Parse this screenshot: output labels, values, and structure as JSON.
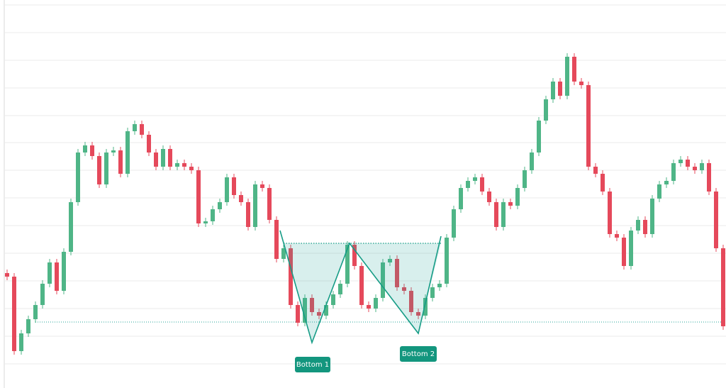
{
  "chart_data": {
    "type": "candlestick",
    "ylim": [
      0,
      547
    ],
    "yticks": [
      540,
      501,
      462,
      423,
      384,
      346,
      307,
      268,
      229,
      190,
      151,
      112,
      73,
      34
    ],
    "grid": true,
    "up_color": "#4fb587",
    "down_color": "#e5495b",
    "open": [
      162,
      157,
      52,
      77,
      97,
      117,
      147,
      177,
      137,
      192,
      262,
      332,
      342,
      327,
      287,
      332,
      335,
      302,
      362,
      372,
      357,
      332,
      312,
      337,
      312,
      317,
      312,
      307,
      232,
      235,
      252,
      262,
      297,
      272,
      262,
      227,
      287,
      282,
      237,
      182,
      197,
      117,
      92,
      127,
      107,
      102,
      117,
      132,
      147,
      202,
      172,
      117,
      112,
      127,
      177,
      182,
      142,
      137,
      107,
      102,
      127,
      142,
      147,
      212,
      252,
      282,
      292,
      297,
      277,
      262,
      227,
      262,
      257,
      282,
      307,
      332,
      377,
      407,
      432,
      412,
      467,
      432,
      427,
      312,
      302,
      277,
      217,
      212,
      172,
      222,
      237,
      217,
      267,
      287,
      292,
      317,
      322,
      312,
      307,
      317,
      277,
      197
    ],
    "close": [
      157,
      52,
      77,
      97,
      117,
      147,
      177,
      137,
      192,
      262,
      332,
      342,
      327,
      287,
      332,
      335,
      302,
      362,
      372,
      357,
      332,
      312,
      337,
      312,
      317,
      312,
      307,
      232,
      235,
      252,
      262,
      297,
      272,
      262,
      227,
      287,
      282,
      237,
      182,
      197,
      117,
      92,
      127,
      107,
      102,
      117,
      132,
      147,
      202,
      172,
      117,
      112,
      127,
      177,
      182,
      142,
      137,
      107,
      102,
      127,
      142,
      147,
      212,
      252,
      282,
      292,
      297,
      277,
      262,
      227,
      262,
      257,
      282,
      307,
      332,
      377,
      407,
      432,
      412,
      467,
      432,
      427,
      312,
      302,
      277,
      217,
      212,
      172,
      222,
      237,
      217,
      267,
      287,
      292,
      317,
      322,
      312,
      307,
      317,
      277,
      197,
      87
    ],
    "high": [
      167,
      162,
      82,
      102,
      122,
      152,
      182,
      182,
      197,
      267,
      337,
      347,
      347,
      332,
      337,
      340,
      340,
      367,
      377,
      377,
      362,
      337,
      342,
      342,
      322,
      322,
      317,
      312,
      240,
      257,
      267,
      302,
      302,
      277,
      267,
      292,
      292,
      287,
      242,
      202,
      202,
      122,
      132,
      132,
      112,
      122,
      137,
      152,
      207,
      207,
      177,
      122,
      132,
      182,
      187,
      187,
      147,
      142,
      112,
      132,
      147,
      152,
      217,
      257,
      287,
      297,
      302,
      302,
      282,
      267,
      267,
      267,
      287,
      312,
      337,
      382,
      412,
      437,
      437,
      472,
      472,
      437,
      432,
      317,
      307,
      282,
      222,
      217,
      227,
      242,
      242,
      272,
      292,
      297,
      322,
      327,
      327,
      317,
      322,
      322,
      282,
      202
    ],
    "low": [
      152,
      47,
      47,
      72,
      92,
      112,
      142,
      132,
      132,
      187,
      257,
      327,
      322,
      282,
      282,
      327,
      297,
      297,
      357,
      352,
      327,
      307,
      307,
      307,
      307,
      307,
      302,
      227,
      227,
      230,
      247,
      257,
      267,
      257,
      222,
      222,
      277,
      232,
      177,
      177,
      112,
      87,
      87,
      102,
      97,
      97,
      112,
      127,
      142,
      167,
      112,
      107,
      107,
      122,
      172,
      137,
      132,
      102,
      97,
      97,
      122,
      137,
      142,
      207,
      247,
      277,
      287,
      272,
      257,
      222,
      222,
      252,
      252,
      277,
      302,
      327,
      372,
      402,
      407,
      407,
      427,
      422,
      307,
      297,
      272,
      212,
      207,
      167,
      167,
      217,
      212,
      212,
      262,
      282,
      287,
      312,
      307,
      302,
      302,
      272,
      192,
      82
    ],
    "annotations": [
      "Bottom 1",
      "Bottom 2"
    ]
  }
}
